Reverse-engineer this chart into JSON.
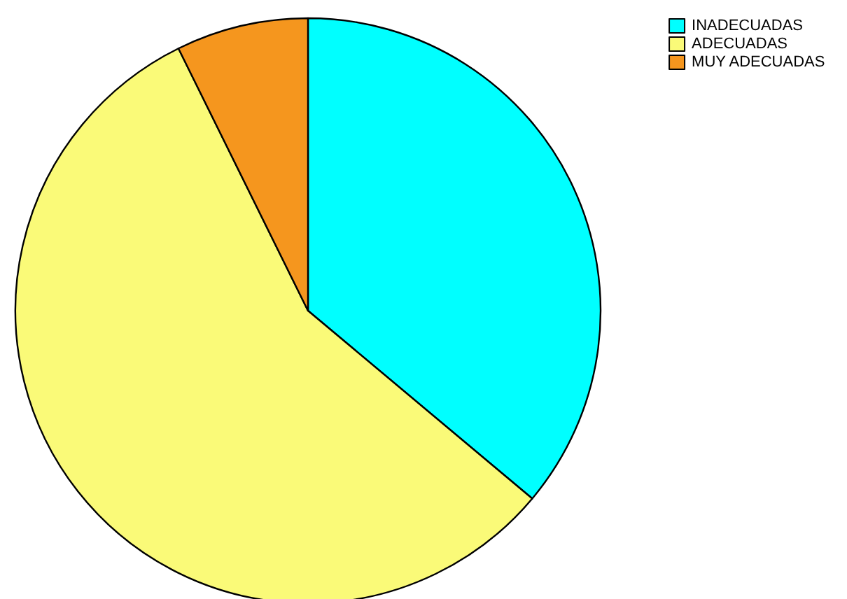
{
  "chart_data": {
    "type": "pie",
    "categories": [
      "INADECUADAS",
      "ADECUADAS",
      "MUY ADECUADAS"
    ],
    "values": [
      36.1,
      56.6,
      7.3
    ],
    "colors": [
      "#00ffff",
      "#fafa78",
      "#f5961e"
    ],
    "legend": "top right"
  }
}
